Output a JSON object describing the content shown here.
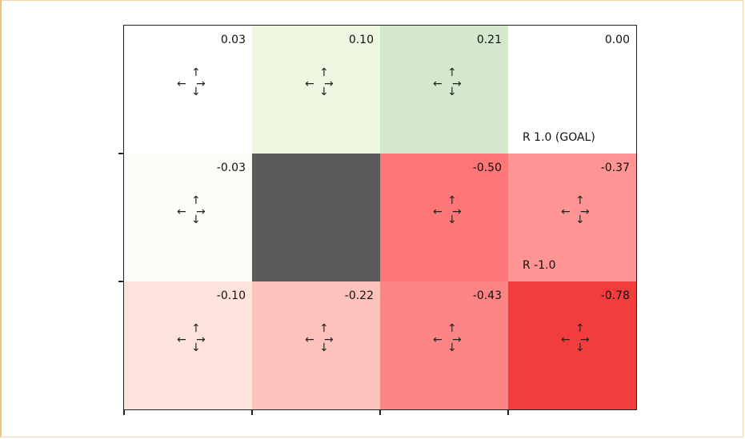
{
  "grid": {
    "rows": 3,
    "cols": 4,
    "cells": [
      [
        {
          "value": "0.03",
          "color": "#ffffff",
          "arrows": true,
          "label": ""
        },
        {
          "value": "0.10",
          "color": "#ecf6e1",
          "arrows": true,
          "label": ""
        },
        {
          "value": "0.21",
          "color": "#d3e8cc",
          "arrows": true,
          "label": ""
        },
        {
          "value": "0.00",
          "color": "#ffffff",
          "arrows": false,
          "label": "R 1.0 (GOAL)"
        }
      ],
      [
        {
          "value": "-0.03",
          "color": "#fbfdf8",
          "arrows": true,
          "label": ""
        },
        {
          "value": "",
          "color": "#5b5b5b",
          "arrows": false,
          "label": "",
          "wall": true
        },
        {
          "value": "-0.50",
          "color": "#fe7778",
          "arrows": true,
          "label": ""
        },
        {
          "value": "-0.37",
          "color": "#fe9493",
          "arrows": true,
          "label": "R -1.0"
        }
      ],
      [
        {
          "value": "-0.10",
          "color": "#fee3dd",
          "arrows": true,
          "label": ""
        },
        {
          "value": "-0.22",
          "color": "#fec2bc",
          "arrows": true,
          "label": ""
        },
        {
          "value": "-0.43",
          "color": "#fe8585",
          "arrows": true,
          "label": ""
        },
        {
          "value": "-0.78",
          "color": "#f23d3c",
          "arrows": true,
          "label": ""
        }
      ]
    ]
  },
  "arrow_glyphs": {
    "up": "↑",
    "down": "↓",
    "left": "←",
    "right": "→"
  }
}
